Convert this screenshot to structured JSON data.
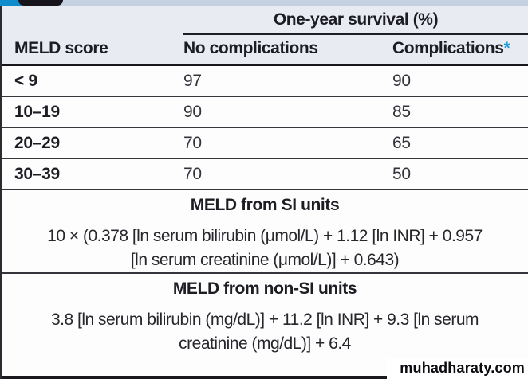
{
  "table": {
    "span_header": "One-year survival (%)",
    "columns": {
      "meld": "MELD score",
      "no_complications": "No complications",
      "complications": "Complications",
      "complications_asterisk": "*"
    },
    "rows": [
      {
        "meld": "< 9",
        "no_complications": "97",
        "complications": "90"
      },
      {
        "meld": "10–19",
        "no_complications": "90",
        "complications": "85"
      },
      {
        "meld": "20–29",
        "no_complications": "70",
        "complications": "65"
      },
      {
        "meld": "30–39",
        "no_complications": "70",
        "complications": "50"
      }
    ]
  },
  "si_section": {
    "title": "MELD from SI units",
    "formula_line1": "10 × (0.378 [ln serum bilirubin (μmol/L) + 1.12 [ln INR] + 0.957",
    "formula_line2": "[ln serum creatinine (μmol/L)] + 0.643)"
  },
  "non_si_section": {
    "title": "MELD from non-SI units",
    "formula_line1": "3.8 [ln serum bilirubin (mg/dL)] + 11.2 [ln INR] + 9.3 [ln serum",
    "formula_line2": "creatinine (mg/dL)] + 6.4"
  },
  "watermark": "muhadharaty.com",
  "colors": {
    "accent_blue": "#1e9ad5",
    "header_bg": "#e9ebf2",
    "tab_dark": "#16131b",
    "strip_light": "#c5d1e1",
    "strip_blue": "#0e8ccd"
  }
}
